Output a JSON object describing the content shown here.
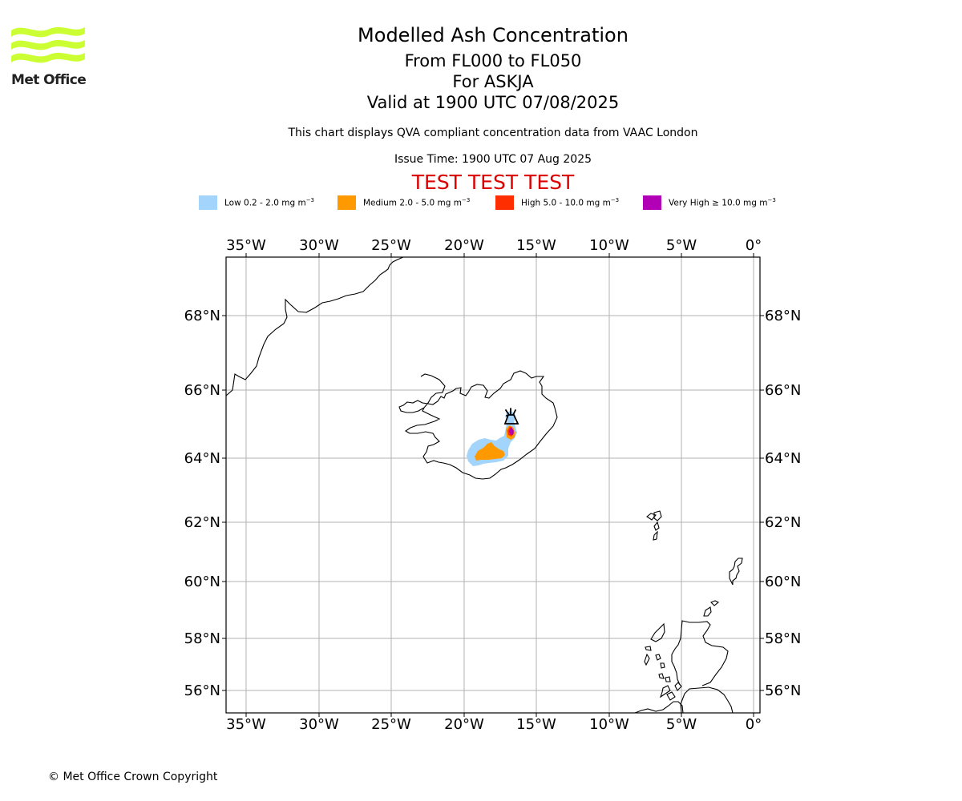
{
  "header": {
    "title": "Modelled Ash Concentration",
    "levels": "From FL000 to FL050",
    "volcano": "For ASKJA",
    "valid": "Valid at 1900 UTC 07/08/2025",
    "description": "This chart displays QVA compliant concentration data from VAAC London",
    "issue_time": "Issue Time: 1900 UTC 07 Aug 2025",
    "test_banner": "TEST TEST TEST"
  },
  "logo": {
    "text": "Met Office",
    "color": "#ccff33"
  },
  "legend": [
    {
      "label": "Low 0.2 - 2.0 mg m",
      "exp": "−3",
      "color": "#a3d4fb"
    },
    {
      "label": "Medium 2.0 - 5.0 mg m",
      "exp": "−3",
      "color": "#fe9a00"
    },
    {
      "label": "High 5.0 - 10.0 mg m",
      "exp": "−3",
      "color": "#ff2e00"
    },
    {
      "label": "Very High ≥ 10.0 mg m",
      "exp": "−3",
      "color": "#b100b5"
    }
  ],
  "map": {
    "longitude_labels": [
      "35°W",
      "30°W",
      "25°W",
      "20°W",
      "15°W",
      "10°W",
      "5°W",
      "0°"
    ],
    "latitude_labels": [
      "68°N",
      "66°N",
      "64°N",
      "62°N",
      "60°N",
      "58°N",
      "56°N"
    ],
    "volcano_name": "ASKJA",
    "volcano_icon": "volcano-icon"
  },
  "footer": {
    "copyright": "© Met Office Crown Copyright"
  }
}
